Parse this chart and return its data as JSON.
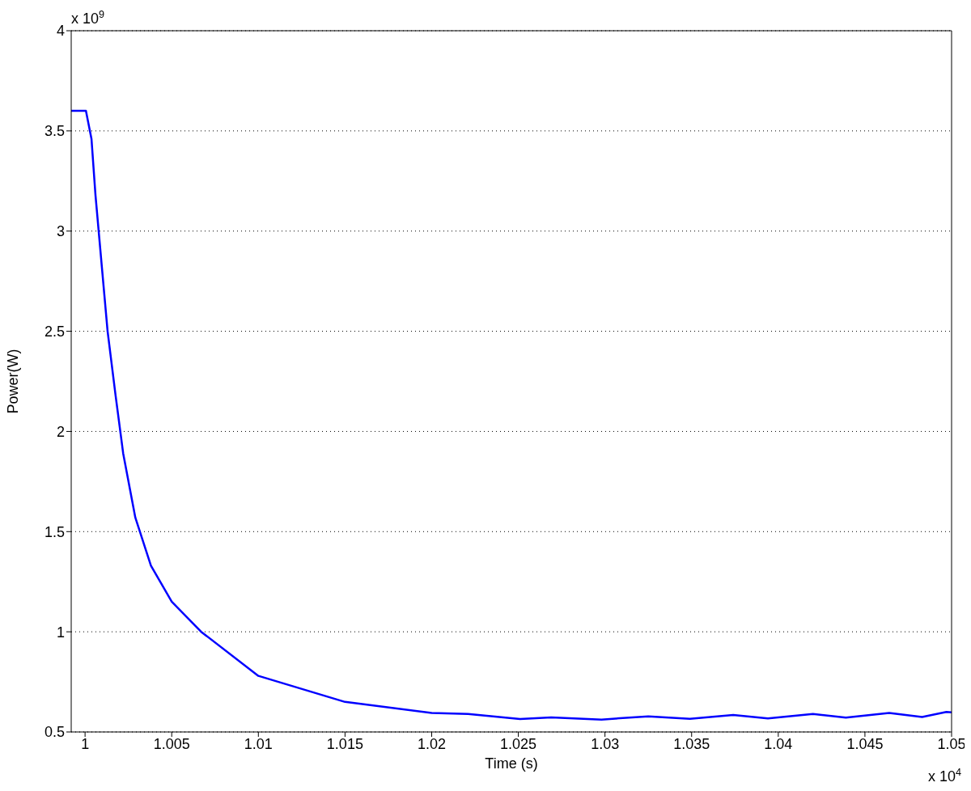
{
  "chart_data": {
    "type": "line",
    "xlabel": "Time (s)",
    "ylabel": "Power(W)",
    "annotations": [
      "x 10$^{9}$",
      "x 10$^{4}$"
    ],
    "x": [
      0.9992,
      1.00005,
      1.00037,
      1.0006,
      1.00097,
      1.0013,
      1.00176,
      1.0022,
      1.0029,
      1.0038,
      1.005,
      1.0067,
      1.01,
      1.015,
      1.02,
      1.0221,
      1.0251,
      1.0269,
      1.0298,
      1.0325,
      1.0349,
      1.0374,
      1.0394,
      1.042,
      1.0439,
      1.0464,
      1.0483,
      1.0497,
      1.05
    ],
    "series": [
      {
        "color": "#0000ff",
        "values": [
          3.6,
          3.6,
          3.46,
          3.18,
          2.82,
          2.5,
          2.18,
          1.89,
          1.57,
          1.33,
          1.15,
          1.0,
          0.78,
          0.65,
          0.595,
          0.59,
          0.565,
          0.573,
          0.562,
          0.578,
          0.566,
          0.585,
          0.568,
          0.59,
          0.572,
          0.595,
          0.575,
          0.6,
          0.598
        ]
      }
    ],
    "xlim": [
      0.9992,
      1.05
    ],
    "xticks": [
      1,
      1.005,
      1.01,
      1.015,
      1.02,
      1.025,
      1.03,
      1.035,
      1.04,
      1.045,
      1.05
    ],
    "ylim": [
      0.5,
      4
    ],
    "yticks": [
      0.5,
      1,
      1.5,
      2,
      2.5,
      3,
      3.5,
      4
    ],
    "grid": "y",
    "line_style": "solid"
  }
}
